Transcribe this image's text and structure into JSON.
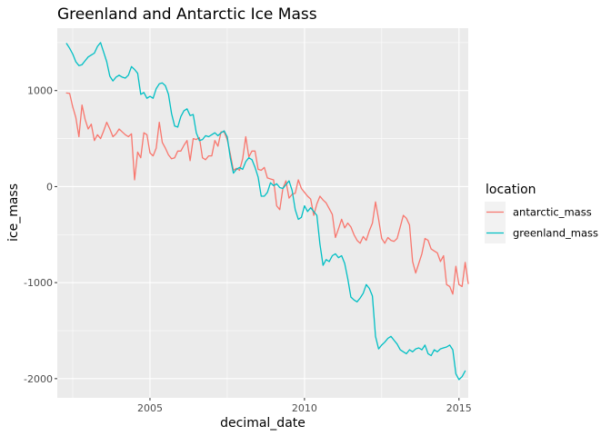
{
  "chart_data": {
    "type": "line",
    "title": "Greenland and Antarctic Ice Mass",
    "xlabel": "decimal_date",
    "ylabel": "ice_mass",
    "xlim": [
      2002.0,
      2015.3
    ],
    "ylim": [
      -2200,
      1650
    ],
    "x_ticks": [
      2005,
      2010,
      2015
    ],
    "x_tick_labels": [
      "2005",
      "2010",
      "2015"
    ],
    "y_ticks": [
      -2000,
      -1000,
      0,
      1000
    ],
    "y_tick_labels": [
      "-2000",
      "-1000",
      "0",
      "1000"
    ],
    "grid": true,
    "legend": {
      "title": "location",
      "position": "right"
    },
    "series": [
      {
        "name": "antarctic_mass",
        "color": "#F8766D",
        "points": [
          [
            2002.3,
            975
          ],
          [
            2002.4,
            970
          ],
          [
            2002.5,
            830
          ],
          [
            2002.6,
            720
          ],
          [
            2002.7,
            520
          ],
          [
            2002.8,
            850
          ],
          [
            2002.9,
            700
          ],
          [
            2003.0,
            600
          ],
          [
            2003.1,
            650
          ],
          [
            2003.2,
            480
          ],
          [
            2003.3,
            540
          ],
          [
            2003.4,
            500
          ],
          [
            2003.5,
            580
          ],
          [
            2003.6,
            670
          ],
          [
            2003.7,
            600
          ],
          [
            2003.8,
            520
          ],
          [
            2003.9,
            550
          ],
          [
            2004.0,
            600
          ],
          [
            2004.1,
            570
          ],
          [
            2004.2,
            540
          ],
          [
            2004.3,
            520
          ],
          [
            2004.4,
            550
          ],
          [
            2004.5,
            70
          ],
          [
            2004.6,
            360
          ],
          [
            2004.7,
            300
          ],
          [
            2004.8,
            560
          ],
          [
            2004.9,
            540
          ],
          [
            2005.0,
            350
          ],
          [
            2005.1,
            320
          ],
          [
            2005.2,
            400
          ],
          [
            2005.3,
            670
          ],
          [
            2005.4,
            460
          ],
          [
            2005.5,
            400
          ],
          [
            2005.6,
            330
          ],
          [
            2005.7,
            290
          ],
          [
            2005.8,
            300
          ],
          [
            2005.9,
            370
          ],
          [
            2006.0,
            370
          ],
          [
            2006.1,
            430
          ],
          [
            2006.2,
            480
          ],
          [
            2006.3,
            270
          ],
          [
            2006.4,
            500
          ],
          [
            2006.5,
            490
          ],
          [
            2006.6,
            510
          ],
          [
            2006.7,
            300
          ],
          [
            2006.8,
            280
          ],
          [
            2006.9,
            320
          ],
          [
            2007.0,
            320
          ],
          [
            2007.1,
            480
          ],
          [
            2007.2,
            420
          ],
          [
            2007.3,
            570
          ],
          [
            2007.4,
            570
          ],
          [
            2007.5,
            490
          ],
          [
            2007.6,
            340
          ],
          [
            2007.7,
            170
          ],
          [
            2007.8,
            190
          ],
          [
            2007.9,
            170
          ],
          [
            2008.0,
            290
          ],
          [
            2008.1,
            520
          ],
          [
            2008.2,
            310
          ],
          [
            2008.3,
            370
          ],
          [
            2008.4,
            370
          ],
          [
            2008.5,
            180
          ],
          [
            2008.6,
            170
          ],
          [
            2008.7,
            200
          ],
          [
            2008.8,
            90
          ],
          [
            2008.9,
            80
          ],
          [
            2009.0,
            70
          ],
          [
            2009.1,
            -200
          ],
          [
            2009.2,
            -240
          ],
          [
            2009.3,
            -20
          ],
          [
            2009.4,
            60
          ],
          [
            2009.5,
            -120
          ],
          [
            2009.6,
            -80
          ],
          [
            2009.7,
            -70
          ],
          [
            2009.8,
            70
          ],
          [
            2009.9,
            -20
          ],
          [
            2010.0,
            -60
          ],
          [
            2010.1,
            -100
          ],
          [
            2010.2,
            -130
          ],
          [
            2010.3,
            -300
          ],
          [
            2010.4,
            -180
          ],
          [
            2010.5,
            -100
          ],
          [
            2010.6,
            -140
          ],
          [
            2010.7,
            -170
          ],
          [
            2010.8,
            -230
          ],
          [
            2010.9,
            -290
          ],
          [
            2011.0,
            -530
          ],
          [
            2011.1,
            -440
          ],
          [
            2011.2,
            -340
          ],
          [
            2011.3,
            -430
          ],
          [
            2011.4,
            -380
          ],
          [
            2011.5,
            -420
          ],
          [
            2011.6,
            -500
          ],
          [
            2011.7,
            -560
          ],
          [
            2011.8,
            -590
          ],
          [
            2011.9,
            -520
          ],
          [
            2012.0,
            -560
          ],
          [
            2012.1,
            -460
          ],
          [
            2012.2,
            -380
          ],
          [
            2012.3,
            -160
          ],
          [
            2012.4,
            -340
          ],
          [
            2012.5,
            -540
          ],
          [
            2012.6,
            -590
          ],
          [
            2012.7,
            -530
          ],
          [
            2012.8,
            -560
          ],
          [
            2012.9,
            -570
          ],
          [
            2013.0,
            -540
          ],
          [
            2013.1,
            -420
          ],
          [
            2013.2,
            -300
          ],
          [
            2013.3,
            -330
          ],
          [
            2013.4,
            -400
          ],
          [
            2013.5,
            -780
          ],
          [
            2013.6,
            -900
          ],
          [
            2013.7,
            -800
          ],
          [
            2013.8,
            -700
          ],
          [
            2013.9,
            -540
          ],
          [
            2014.0,
            -560
          ],
          [
            2014.1,
            -650
          ],
          [
            2014.2,
            -670
          ],
          [
            2014.3,
            -690
          ],
          [
            2014.4,
            -780
          ],
          [
            2014.5,
            -720
          ],
          [
            2014.6,
            -1020
          ],
          [
            2014.7,
            -1040
          ],
          [
            2014.8,
            -1120
          ],
          [
            2014.9,
            -830
          ],
          [
            2015.0,
            -1020
          ],
          [
            2015.1,
            -1040
          ],
          [
            2015.2,
            -790
          ],
          [
            2015.3,
            -1010
          ]
        ]
      },
      {
        "name": "greenland_mass",
        "color": "#00BFC4",
        "points": [
          [
            2002.3,
            1490
          ],
          [
            2002.4,
            1440
          ],
          [
            2002.5,
            1380
          ],
          [
            2002.6,
            1300
          ],
          [
            2002.7,
            1260
          ],
          [
            2002.8,
            1270
          ],
          [
            2002.9,
            1310
          ],
          [
            2003.0,
            1350
          ],
          [
            2003.1,
            1370
          ],
          [
            2003.2,
            1390
          ],
          [
            2003.3,
            1460
          ],
          [
            2003.4,
            1500
          ],
          [
            2003.5,
            1400
          ],
          [
            2003.6,
            1300
          ],
          [
            2003.7,
            1150
          ],
          [
            2003.8,
            1100
          ],
          [
            2003.9,
            1140
          ],
          [
            2004.0,
            1160
          ],
          [
            2004.1,
            1140
          ],
          [
            2004.2,
            1130
          ],
          [
            2004.3,
            1160
          ],
          [
            2004.4,
            1250
          ],
          [
            2004.5,
            1220
          ],
          [
            2004.6,
            1180
          ],
          [
            2004.7,
            960
          ],
          [
            2004.8,
            980
          ],
          [
            2004.9,
            920
          ],
          [
            2005.0,
            940
          ],
          [
            2005.1,
            920
          ],
          [
            2005.2,
            1020
          ],
          [
            2005.3,
            1070
          ],
          [
            2005.4,
            1080
          ],
          [
            2005.5,
            1050
          ],
          [
            2005.6,
            960
          ],
          [
            2005.7,
            760
          ],
          [
            2005.8,
            630
          ],
          [
            2005.9,
            620
          ],
          [
            2006.0,
            730
          ],
          [
            2006.1,
            790
          ],
          [
            2006.2,
            810
          ],
          [
            2006.3,
            740
          ],
          [
            2006.4,
            750
          ],
          [
            2006.5,
            560
          ],
          [
            2006.6,
            480
          ],
          [
            2006.7,
            490
          ],
          [
            2006.8,
            530
          ],
          [
            2006.9,
            520
          ],
          [
            2007.0,
            540
          ],
          [
            2007.1,
            560
          ],
          [
            2007.2,
            530
          ],
          [
            2007.3,
            560
          ],
          [
            2007.4,
            580
          ],
          [
            2007.5,
            520
          ],
          [
            2007.6,
            300
          ],
          [
            2007.7,
            140
          ],
          [
            2007.8,
            180
          ],
          [
            2007.9,
            200
          ],
          [
            2008.0,
            180
          ],
          [
            2008.1,
            260
          ],
          [
            2008.2,
            300
          ],
          [
            2008.3,
            280
          ],
          [
            2008.4,
            200
          ],
          [
            2008.5,
            100
          ],
          [
            2008.6,
            -100
          ],
          [
            2008.7,
            -100
          ],
          [
            2008.8,
            -60
          ],
          [
            2008.9,
            40
          ],
          [
            2009.0,
            10
          ],
          [
            2009.1,
            30
          ],
          [
            2009.2,
            -10
          ],
          [
            2009.3,
            -20
          ],
          [
            2009.4,
            20
          ],
          [
            2009.5,
            60
          ],
          [
            2009.6,
            -40
          ],
          [
            2009.7,
            -240
          ],
          [
            2009.8,
            -340
          ],
          [
            2009.9,
            -320
          ],
          [
            2010.0,
            -200
          ],
          [
            2010.1,
            -260
          ],
          [
            2010.2,
            -220
          ],
          [
            2010.3,
            -260
          ],
          [
            2010.4,
            -300
          ],
          [
            2010.5,
            -600
          ],
          [
            2010.6,
            -820
          ],
          [
            2010.7,
            -760
          ],
          [
            2010.8,
            -780
          ],
          [
            2010.9,
            -720
          ],
          [
            2011.0,
            -700
          ],
          [
            2011.1,
            -740
          ],
          [
            2011.2,
            -720
          ],
          [
            2011.3,
            -800
          ],
          [
            2011.4,
            -960
          ],
          [
            2011.5,
            -1150
          ],
          [
            2011.6,
            -1180
          ],
          [
            2011.7,
            -1200
          ],
          [
            2011.8,
            -1160
          ],
          [
            2011.9,
            -1110
          ],
          [
            2012.0,
            -1020
          ],
          [
            2012.1,
            -1060
          ],
          [
            2012.2,
            -1140
          ],
          [
            2012.3,
            -1560
          ],
          [
            2012.4,
            -1690
          ],
          [
            2012.5,
            -1650
          ],
          [
            2012.6,
            -1620
          ],
          [
            2012.7,
            -1580
          ],
          [
            2012.8,
            -1560
          ],
          [
            2012.9,
            -1600
          ],
          [
            2013.0,
            -1640
          ],
          [
            2013.1,
            -1700
          ],
          [
            2013.2,
            -1720
          ],
          [
            2013.3,
            -1740
          ],
          [
            2013.4,
            -1700
          ],
          [
            2013.5,
            -1720
          ],
          [
            2013.6,
            -1690
          ],
          [
            2013.7,
            -1680
          ],
          [
            2013.8,
            -1700
          ],
          [
            2013.9,
            -1650
          ],
          [
            2014.0,
            -1740
          ],
          [
            2014.1,
            -1760
          ],
          [
            2014.2,
            -1700
          ],
          [
            2014.3,
            -1720
          ],
          [
            2014.4,
            -1690
          ],
          [
            2014.5,
            -1680
          ],
          [
            2014.6,
            -1670
          ],
          [
            2014.7,
            -1650
          ],
          [
            2014.8,
            -1700
          ],
          [
            2014.9,
            -1950
          ],
          [
            2015.0,
            -2010
          ],
          [
            2015.1,
            -1980
          ],
          [
            2015.2,
            -1920
          ]
        ]
      }
    ]
  }
}
